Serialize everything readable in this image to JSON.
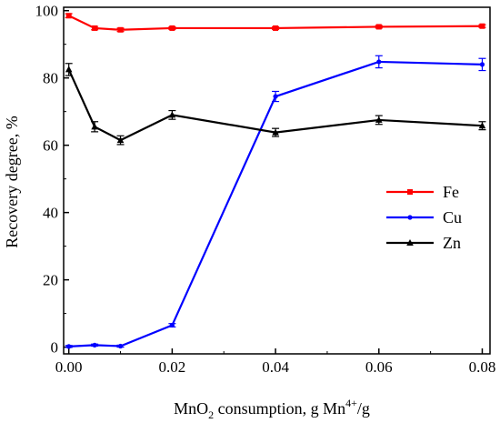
{
  "chart_data": {
    "type": "line",
    "xlabel": {
      "prefix": "MnO",
      "prefix_sub": "2",
      "middle": " consumption, g Mn",
      "sup": "4+",
      "suffix": "/g"
    },
    "ylabel": "Recovery degree, %",
    "xlim": [
      -0.001,
      0.0815
    ],
    "ylim": [
      -2,
      101
    ],
    "xticks": [
      0.0,
      0.02,
      0.04,
      0.06,
      0.08
    ],
    "xtick_labels": [
      "0.00",
      "0.02",
      "0.04",
      "0.06",
      "0.08"
    ],
    "yticks": [
      0,
      20,
      40,
      60,
      80,
      100
    ],
    "ytick_labels": [
      "0",
      "20",
      "40",
      "60",
      "80",
      "100"
    ],
    "grid": false,
    "legend_position": "center-right",
    "x": [
      0.0,
      0.005,
      0.01,
      0.02,
      0.04,
      0.06,
      0.08
    ],
    "series": [
      {
        "name": "Fe",
        "color": "#ff0000",
        "marker": "square",
        "values": [
          98.5,
          94.8,
          94.3,
          94.8,
          94.8,
          95.2,
          95.4
        ],
        "errors": [
          0.6,
          0.5,
          0.5,
          0.4,
          0.4,
          0.4,
          0.4
        ]
      },
      {
        "name": "Cu",
        "color": "#0000ff",
        "marker": "circle",
        "values": [
          0.2,
          0.6,
          0.3,
          6.5,
          74.5,
          84.8,
          84.0
        ],
        "errors": [
          0.3,
          0.3,
          0.3,
          0.5,
          1.5,
          1.8,
          1.8
        ]
      },
      {
        "name": "Zn",
        "color": "#000000",
        "marker": "triangle",
        "values": [
          82.5,
          65.5,
          61.5,
          69.0,
          63.8,
          67.5,
          65.8
        ],
        "errors": [
          1.8,
          1.5,
          1.3,
          1.3,
          1.2,
          1.3,
          1.2
        ]
      }
    ]
  }
}
